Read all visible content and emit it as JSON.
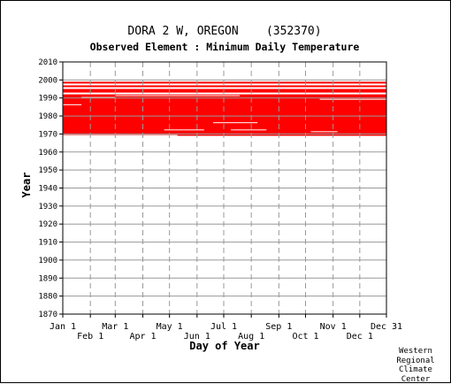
{
  "chart_data": {
    "type": "heatmap",
    "title": "DORA 2 W, OREGON    (352370)",
    "subtitle": "Observed Element : Minimum Daily Temperature",
    "xlabel": "Day of Year",
    "ylabel": "Year",
    "xlim": [
      1,
      365
    ],
    "ylim": [
      1870,
      2010
    ],
    "x_ticks_upper": [
      {
        "label": "Jan 1",
        "day": 1
      },
      {
        "label": "Mar 1",
        "day": 60
      },
      {
        "label": "May 1",
        "day": 121
      },
      {
        "label": "Jul 1",
        "day": 182
      },
      {
        "label": "Sep 1",
        "day": 244
      },
      {
        "label": "Nov 1",
        "day": 305
      },
      {
        "label": "Dec 31",
        "day": 365
      }
    ],
    "x_ticks_lower": [
      {
        "label": "Feb 1",
        "day": 32
      },
      {
        "label": "Apr 1",
        "day": 91
      },
      {
        "label": "Jun 1",
        "day": 152
      },
      {
        "label": "Aug 1",
        "day": 213
      },
      {
        "label": "Oct 1",
        "day": 274
      },
      {
        "label": "Dec 1",
        "day": 335
      }
    ],
    "y_ticks": [
      1870,
      1880,
      1890,
      1900,
      1910,
      1920,
      1930,
      1940,
      1950,
      1960,
      1970,
      1980,
      1990,
      2000,
      2010
    ],
    "grid": true,
    "series": [
      {
        "color": "#ff0000",
        "segments": [
          {
            "x0": 1,
            "x1": 365,
            "y0": 1969,
            "y1": 1990
          },
          {
            "x0": 1,
            "x1": 365,
            "y0": 1990,
            "y1": 1992
          },
          {
            "x0": 1,
            "x1": 365,
            "y0": 1993,
            "y1": 1995
          },
          {
            "x0": 1,
            "x1": 365,
            "y0": 1996,
            "y1": 1997
          },
          {
            "x0": 1,
            "x1": 365,
            "y0": 1998,
            "y1": 1999
          }
        ],
        "gaps": [
          {
            "x0": 1,
            "x1": 22,
            "y0": 1986,
            "y1": 1987
          },
          {
            "x0": 22,
            "x1": 60,
            "y0": 1990,
            "y1": 1991
          },
          {
            "x0": 60,
            "x1": 200,
            "y0": 1991,
            "y1": 1992
          },
          {
            "x0": 290,
            "x1": 365,
            "y0": 1989,
            "y1": 1990
          },
          {
            "x0": 170,
            "x1": 220,
            "y0": 1976,
            "y1": 1977
          },
          {
            "x0": 190,
            "x1": 230,
            "y0": 1972,
            "y1": 1973
          },
          {
            "x0": 280,
            "x1": 310,
            "y0": 1971,
            "y1": 1972
          },
          {
            "x0": 1,
            "x1": 130,
            "y0": 1969,
            "y1": 1970
          },
          {
            "x0": 115,
            "x1": 160,
            "y0": 1972,
            "y1": 1973
          }
        ]
      }
    ]
  },
  "credit": {
    "line1": "Western",
    "line2": "Regional",
    "line3": "Climate",
    "line4": "Center"
  },
  "colors": {
    "data": "#ff0000",
    "grid": "#999999",
    "axis": "#000000"
  }
}
